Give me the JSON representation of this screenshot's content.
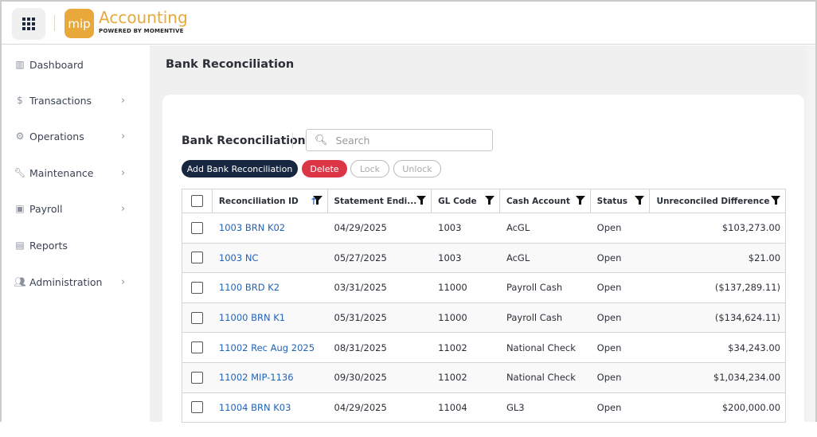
{
  "header": {
    "brand_logo": "mip",
    "brand_name": "Accounting",
    "brand_tagline": "POWERED BY MOMENTIVE"
  },
  "sidebar": {
    "items": [
      {
        "label": "Dashboard",
        "icon": "chart-icon",
        "chevron": false
      },
      {
        "label": "Transactions",
        "icon": "dollar-icon",
        "chevron": true
      },
      {
        "label": "Operations",
        "icon": "gear-icon",
        "chevron": true
      },
      {
        "label": "Maintenance",
        "icon": "wrench-icon",
        "chevron": true
      },
      {
        "label": "Payroll",
        "icon": "payroll-icon",
        "chevron": true
      },
      {
        "label": "Reports",
        "icon": "document-icon",
        "chevron": false
      },
      {
        "label": "Administration",
        "icon": "users-icon",
        "chevron": true
      }
    ]
  },
  "page": {
    "title": "Bank Reconciliation"
  },
  "card": {
    "title": "Bank Reconciliation",
    "search_placeholder": "Search",
    "buttons": {
      "add": "Add Bank Reconciliation",
      "delete": "Delete",
      "lock": "Lock",
      "unlock": "Unlock"
    }
  },
  "table": {
    "columns": [
      "Reconciliation ID",
      "Statement Endi...",
      "GL Code",
      "Cash Account",
      "Status",
      "Unreconciled Difference"
    ],
    "sort": {
      "column": "Reconciliation ID",
      "direction": "ascending"
    },
    "rows": [
      [
        "1003 BRN K02",
        "04/29/2025",
        "1003",
        "AcGL",
        "Open",
        "$103,273.00"
      ],
      [
        "1003 NC",
        "05/27/2025",
        "1003",
        "AcGL",
        "Open",
        "$21.00"
      ],
      [
        "1100 BRD K2",
        "03/31/2025",
        "11000",
        "Payroll Cash",
        "Open",
        "($137,289.11)"
      ],
      [
        "11000 BRN K1",
        "05/31/2025",
        "11000",
        "Payroll Cash",
        "Open",
        "($134,624.11)"
      ],
      [
        "11002 Rec Aug 2025",
        "08/31/2025",
        "11002",
        "National Check",
        "Open",
        "$34,243.00"
      ],
      [
        "11002 MIP-1136",
        "09/30/2025",
        "11002",
        "National Check",
        "Open",
        "$1,034,234.00"
      ],
      [
        "11004 BRN K03",
        "04/29/2025",
        "11004",
        "GL3",
        "Open",
        "$200,000.00"
      ]
    ]
  },
  "colors": {
    "brand": "#e8a93a",
    "primary_button": "#16273f",
    "delete_button": "#dc3545",
    "link": "#2163b8"
  }
}
